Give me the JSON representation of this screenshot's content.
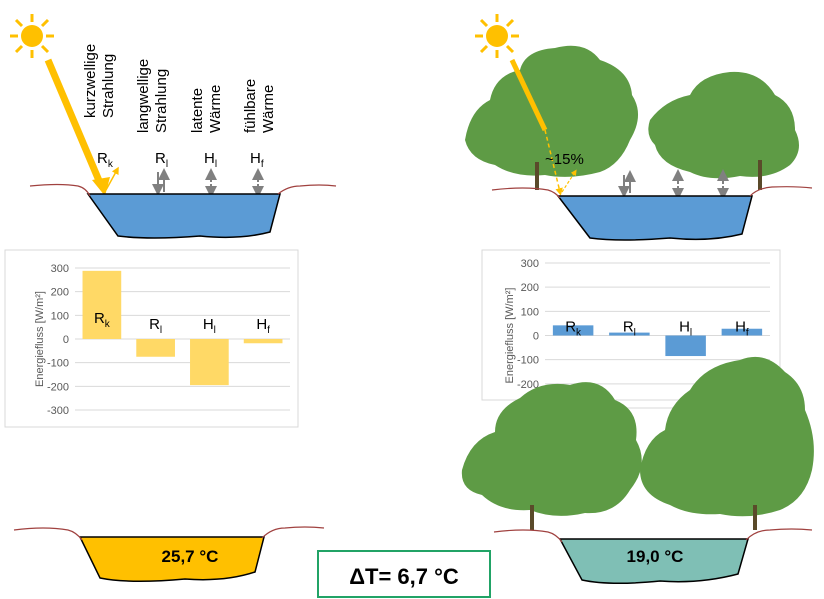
{
  "headers": [
    {
      "lines": [
        "kurzwellige",
        "Strahlung"
      ]
    },
    {
      "lines": [
        "langwellige",
        "Strahlung"
      ]
    },
    {
      "lines": [
        "latente",
        "Wärme"
      ]
    },
    {
      "lines": [
        "fühlbare",
        "Wärme"
      ]
    }
  ],
  "flux_symbols": [
    {
      "main": "R",
      "sub": "k"
    },
    {
      "main": "R",
      "sub": "l"
    },
    {
      "main": "H",
      "sub": "l"
    },
    {
      "main": "H",
      "sub": "f"
    }
  ],
  "shade_label": "~15%",
  "temp_unshaded": "25,7 °C",
  "temp_shaded": "19,0 °C",
  "delta_label": "ΔT= 6,7 °C",
  "colors": {
    "water": "#5b9bd5",
    "sun": "#ffc000",
    "tree": "#5e9b45",
    "bank": "#a0413f",
    "bar_unshaded": "#ffd966",
    "bar_shaded": "#5b9bd5",
    "warm_water": "#ffc000",
    "cool_water": "#7fbfb5",
    "delta_border": "#21a366"
  },
  "chart_data": [
    {
      "type": "bar",
      "categories": [
        "Rk",
        "Rl",
        "Hl",
        "Hf"
      ],
      "values": [
        288,
        -75,
        -195,
        -18
      ],
      "ylabel": "Energiefluss [W/m²]",
      "ylim": [
        -300,
        300
      ],
      "yticks": [
        300,
        200,
        100,
        0,
        -100,
        -200,
        -300
      ],
      "grid": true
    },
    {
      "type": "bar",
      "categories": [
        "Rk",
        "Rl",
        "Hl",
        "Hf"
      ],
      "values": [
        42,
        12,
        -85,
        28
      ],
      "ylabel": "Energiefluss [W/m²]",
      "ylim": [
        -300,
        300
      ],
      "yticks": [
        300,
        200,
        100,
        0,
        -100,
        -200,
        -300
      ],
      "grid": true
    }
  ]
}
